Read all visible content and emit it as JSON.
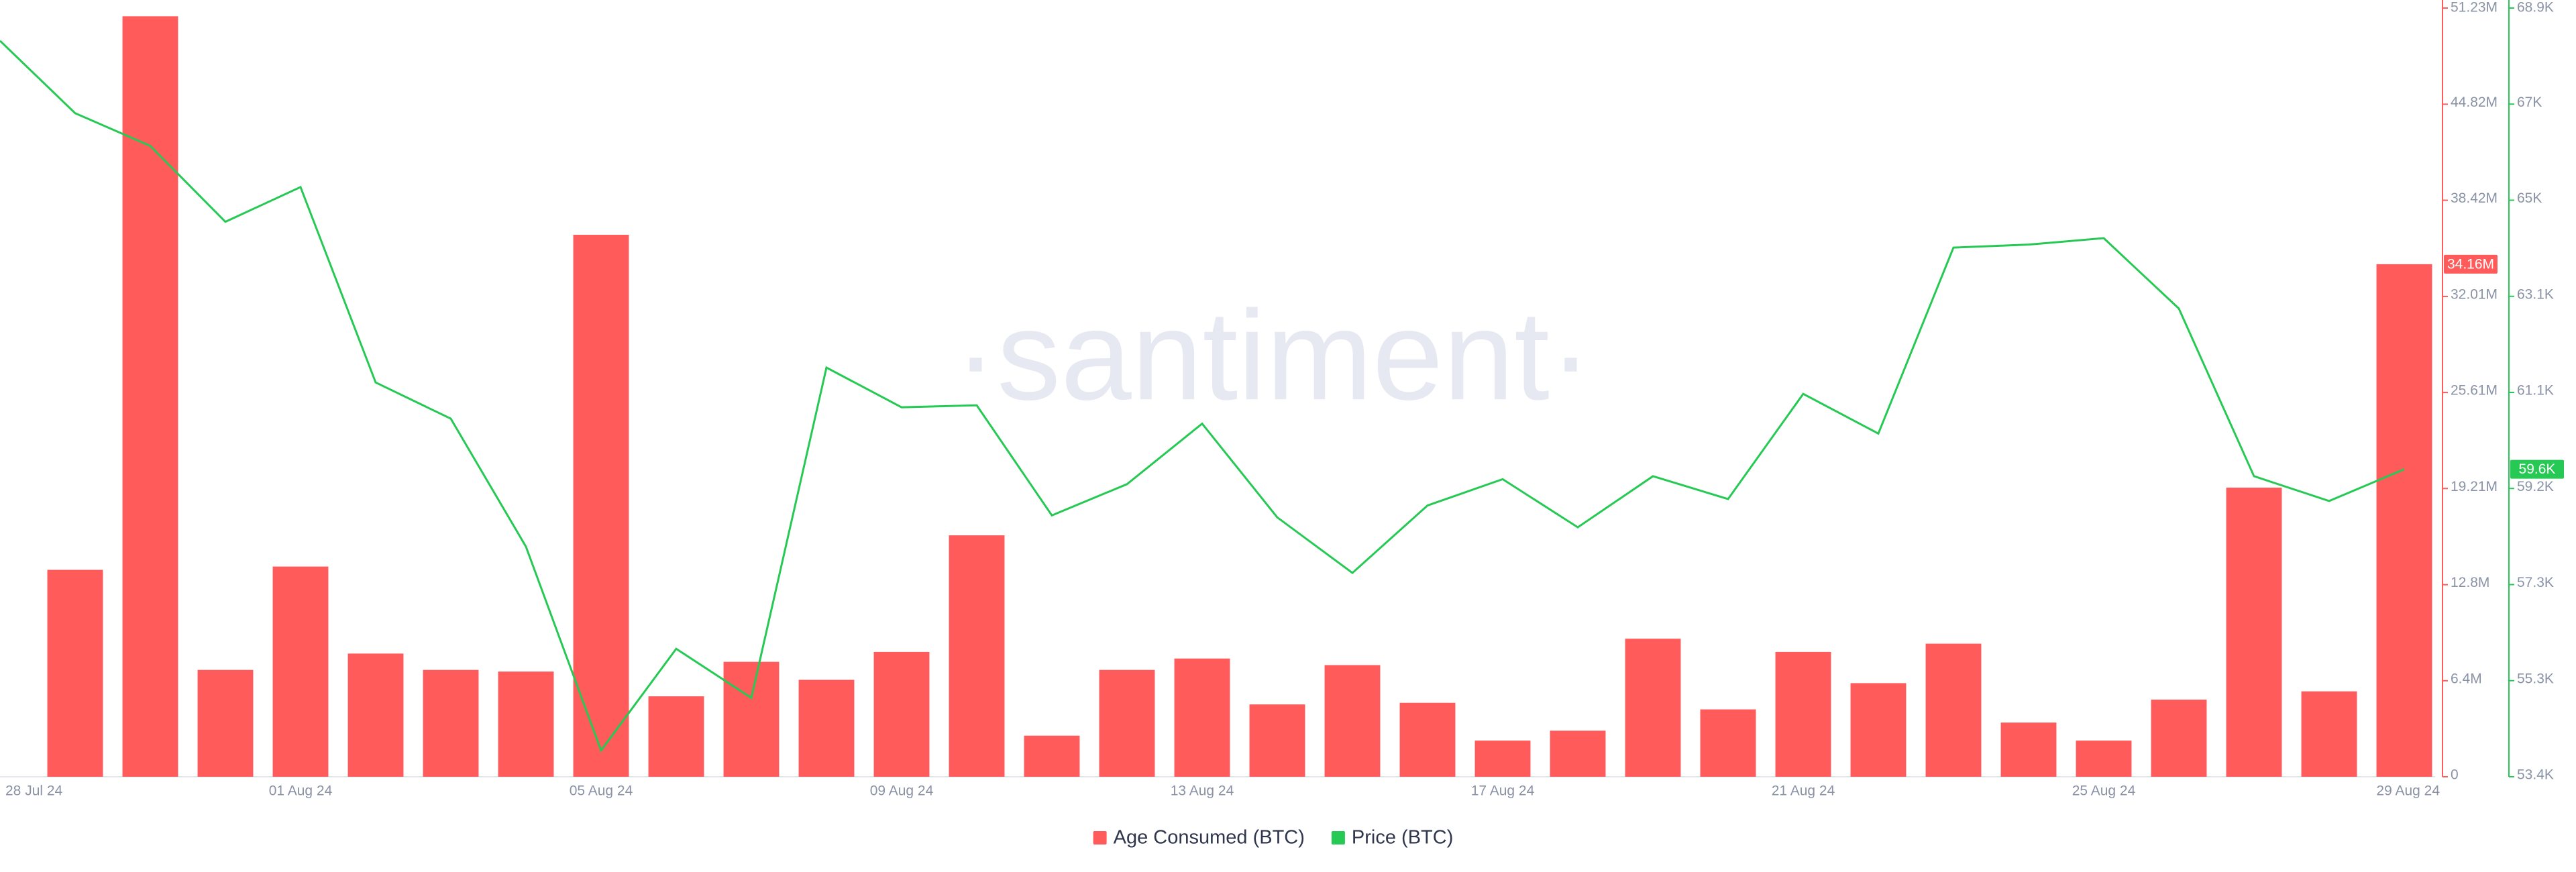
{
  "chart_data": {
    "type": "bar-line",
    "watermark": "·santiment·",
    "categories": [
      "28 Jul 24",
      null,
      null,
      null,
      "01 Aug 24",
      null,
      null,
      null,
      "05 Aug 24",
      null,
      null,
      null,
      "09 Aug 24",
      null,
      null,
      null,
      "13 Aug 24",
      null,
      null,
      null,
      "17 Aug 24",
      null,
      null,
      null,
      "21 Aug 24",
      null,
      null,
      null,
      "25 Aug 24",
      null,
      null,
      null,
      "29 Aug 24"
    ],
    "series": [
      {
        "name": "Age Consumed (BTC)",
        "type": "bar",
        "color": "#ff5b5b",
        "axis": "y",
        "values": [
          null,
          13790000,
          50680000,
          7120000,
          14010000,
          8210000,
          7120000,
          7010000,
          36120000,
          5360000,
          7660000,
          6460000,
          8320000,
          16090000,
          2740000,
          7120000,
          7880000,
          4820000,
          7440000,
          4930000,
          2410000,
          3070000,
          9200000,
          4490000,
          8320000,
          6240000,
          8870000,
          3610000,
          2410000,
          5140000,
          19270000,
          5690000,
          34160000
        ],
        "value_labels": [
          null,
          null,
          null,
          null,
          null,
          null,
          null,
          null,
          null,
          null,
          null,
          null,
          null,
          null,
          null,
          null,
          null,
          null,
          null,
          null,
          null,
          null,
          null,
          null,
          null,
          null,
          null,
          null,
          null,
          null,
          null,
          null,
          "34.16M"
        ]
      },
      {
        "name": "Price (BTC)",
        "type": "line",
        "color": "#26c953",
        "axis": "y2",
        "values": [
          68240,
          66780,
          66120,
          64590,
          65290,
          61350,
          60620,
          58040,
          53930,
          55980,
          54990,
          61650,
          60850,
          60890,
          58670,
          59300,
          60520,
          58630,
          57510,
          58870,
          59400,
          58430,
          59460,
          59000,
          61120,
          60320,
          64070,
          64130,
          64260,
          62840,
          59460,
          58960,
          59600
        ],
        "value_labels": [
          null,
          null,
          null,
          null,
          null,
          null,
          null,
          null,
          null,
          null,
          null,
          null,
          null,
          null,
          null,
          null,
          null,
          null,
          null,
          null,
          null,
          null,
          null,
          null,
          null,
          null,
          null,
          null,
          null,
          null,
          null,
          null,
          "59.6K"
        ]
      }
    ],
    "ylim": [
      0,
      51230000
    ],
    "yticks": [
      0,
      {
        "value": 6400000,
        "label": "6.4M"
      },
      {
        "value": 12800000,
        "label": "12.8M"
      },
      {
        "value": 19210000,
        "label": "19.21M"
      },
      {
        "value": 25610000,
        "label": "25.61M"
      },
      {
        "value": 32010000,
        "label": "32.01M"
      },
      {
        "value": 38420000,
        "label": "38.42M"
      },
      {
        "value": 44820000,
        "label": "44.82M"
      },
      {
        "value": 51230000,
        "label": "51.23M"
      }
    ],
    "y2lim": [
      53400,
      68900
    ],
    "y2ticks": [
      {
        "value": 53400,
        "label": "53.4K"
      },
      {
        "value": 55337.5,
        "label": "55.3K"
      },
      {
        "value": 57275,
        "label": "57.3K"
      },
      {
        "value": 59212.5,
        "label": "59.2K"
      },
      {
        "value": 61150,
        "label": "61.1K"
      },
      {
        "value": 63087.5,
        "label": "63.1K"
      },
      {
        "value": 65025,
        "label": "65K"
      },
      {
        "value": 66962.5,
        "label": "67K"
      },
      {
        "value": 68900,
        "label": "68.9K"
      }
    ],
    "legend": "bottom"
  }
}
